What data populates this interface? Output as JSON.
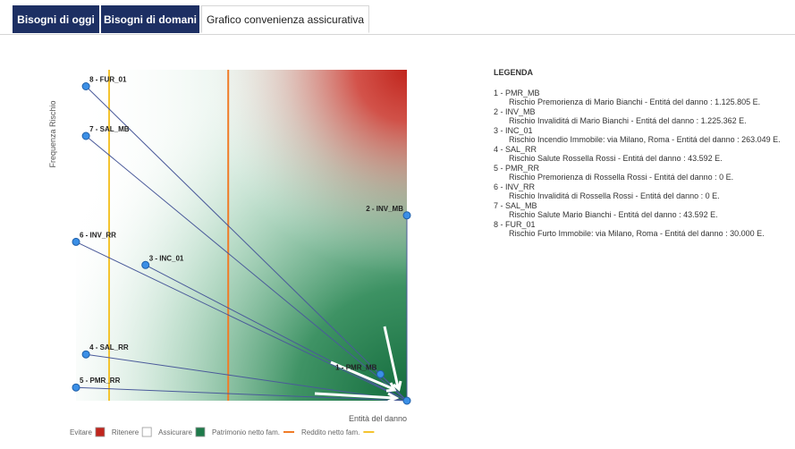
{
  "tabs": [
    {
      "label": "Bisogni di oggi"
    },
    {
      "label": "Bisogni di domani"
    },
    {
      "label": "Grafico convenienza assicurativa"
    }
  ],
  "chart_data": {
    "type": "scatter",
    "ylabel": "Frequenza Rischio",
    "xlabel": "Entità del danno",
    "points": [
      {
        "label": "8 - FUR_01",
        "x": 0.03,
        "y": 0.95
      },
      {
        "label": "7 - SAL_MB",
        "x": 0.03,
        "y": 0.8
      },
      {
        "label": "6 - INV_RR",
        "x": 0.0,
        "y": 0.48
      },
      {
        "label": "3 - INC_01",
        "x": 0.21,
        "y": 0.41
      },
      {
        "label": "2 - INV_MB",
        "x": 1.0,
        "y": 0.56
      },
      {
        "label": "4 - SAL_RR",
        "x": 0.03,
        "y": 0.14
      },
      {
        "label": "5 - PMR_RR",
        "x": 0.0,
        "y": 0.04
      },
      {
        "label": "1 - PMR_MB",
        "x": 0.92,
        "y": 0.08
      }
    ],
    "target": {
      "x": 1.0,
      "y": 0.0
    },
    "vertical_lines": [
      {
        "name": "Reddito netto fam.",
        "x": 0.1,
        "color": "#f4c430"
      },
      {
        "name": "Patrimonio netto fam.",
        "x": 0.46,
        "color": "#f07c28"
      }
    ],
    "regions": [
      {
        "name": "Evitare",
        "color": "#c0251d"
      },
      {
        "name": "Ritenere",
        "color": "#ffffff"
      },
      {
        "name": "Assicurare",
        "color": "#1e7a4a"
      }
    ],
    "legend_bar": [
      {
        "label": "Evitare",
        "kind": "box",
        "color": "#c0251d"
      },
      {
        "label": "Ritenere",
        "kind": "box",
        "color": "#ffffff"
      },
      {
        "label": "Assicurare",
        "kind": "box",
        "color": "#1e7a4a"
      },
      {
        "label": "Patrimonio netto fam.",
        "kind": "line",
        "color": "#f07c28"
      },
      {
        "label": "Reddito netto fam.",
        "kind": "line",
        "color": "#f4c430"
      }
    ]
  },
  "legend": {
    "title": "LEGENDA",
    "items": [
      {
        "code": "1 - PMR_MB",
        "desc": "Rischio Premorienza di Mario Bianchi - Entitá del danno : 1.125.805 E."
      },
      {
        "code": "2 - INV_MB",
        "desc": "Rischio Invaliditá di Mario Bianchi - Entitá del danno : 1.225.362 E."
      },
      {
        "code": "3 - INC_01",
        "desc": "Rischio Incendio Immobile: via Milano, Roma - Entitá del danno : 263.049 E."
      },
      {
        "code": "4 - SAL_RR",
        "desc": "Rischio Salute Rossella Rossi - Entitá del danno : 43.592 E."
      },
      {
        "code": "5 - PMR_RR",
        "desc": "Rischio Premorienza di Rossella Rossi - Entitá del danno : 0 E."
      },
      {
        "code": "6 - INV_RR",
        "desc": "Rischio Invaliditá di Rossella Rossi - Entitá del danno : 0 E."
      },
      {
        "code": "7 - SAL_MB",
        "desc": "Rischio Salute Mario Bianchi - Entitá del danno : 43.592 E."
      },
      {
        "code": "8 - FUR_01",
        "desc": "Rischio Furto Immobile: via Milano, Roma - Entitá del danno : 30.000 E."
      }
    ]
  }
}
